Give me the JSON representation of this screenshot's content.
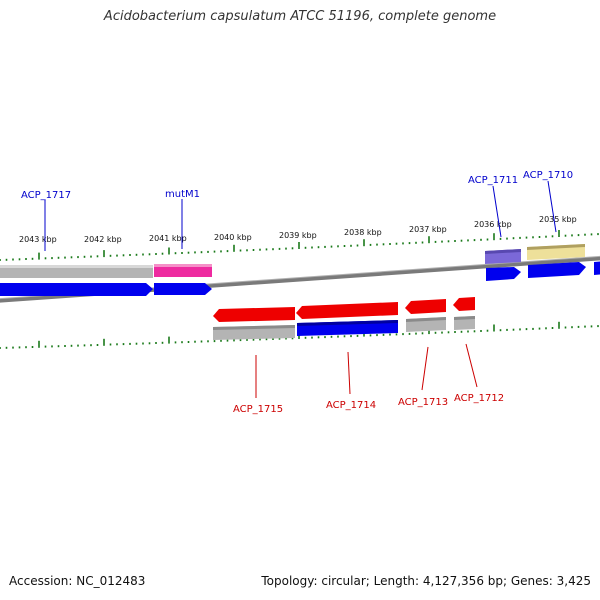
{
  "title": "Acidobacterium capsulatum ATCC 51196, complete genome",
  "footer": {
    "accession": "Accession: NC_012483",
    "stats": "Topology: circular; Length: 4,127,356 bp; Genes: 3,425"
  },
  "colors": {
    "backbone": "#808080",
    "tick": "#1a7a1a",
    "forward_label": "#0000cc",
    "reverse_label": "#cc0000",
    "cds_blue": "#0000ee",
    "cds_red": "#ee0000",
    "cog_gray": "#b4b4b4",
    "cog_pink": "#ee2aa0",
    "cog_purple": "#7b68d8",
    "cog_khaki": "#eee09a"
  },
  "ruler": {
    "tick_labels": [
      "2043 kbp",
      "2042 kbp",
      "2041 kbp",
      "2040 kbp",
      "2039 kbp",
      "2038 kbp",
      "2037 kbp",
      "2036 kbp",
      "2035 kbp"
    ]
  },
  "genes": [
    {
      "label": "ACP_1717",
      "strand": "forward",
      "cog_color": "cog_gray"
    },
    {
      "label": "mutM1",
      "strand": "forward",
      "cog_color": "cog_pink"
    },
    {
      "label": "ACP_1715",
      "strand": "reverse",
      "cog_color": "cog_gray"
    },
    {
      "label": "ACP_1714",
      "strand": "reverse",
      "cog_color": "cds_blue"
    },
    {
      "label": "ACP_1713",
      "strand": "reverse",
      "cog_color": "cog_gray"
    },
    {
      "label": "ACP_1712",
      "strand": "reverse",
      "cog_color": "cog_gray"
    },
    {
      "label": "ACP_1711",
      "strand": "forward",
      "cog_color": "cog_purple"
    },
    {
      "label": "ACP_1710",
      "strand": "forward",
      "cog_color": "cog_khaki"
    }
  ]
}
